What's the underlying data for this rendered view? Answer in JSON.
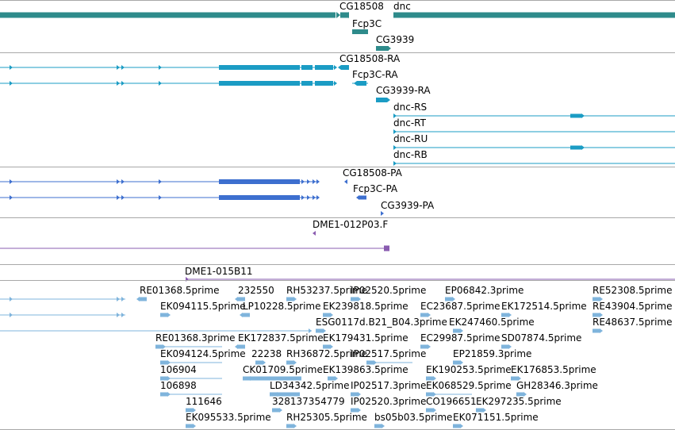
{
  "colors": {
    "gene": "#2e8b8b",
    "transcript": "#1b9cc4",
    "protein": "#3d6fcf",
    "clone": "#8a5cb0",
    "est": "#7fb4dc",
    "separator": "#a8a8a8"
  },
  "tracks": [
    {
      "name": "genes",
      "color": "gene",
      "labels": [
        {
          "id": "gene-cg18508",
          "text": "CG18508"
        },
        {
          "id": "gene-dnc",
          "text": "dnc"
        },
        {
          "id": "gene-fcp3c",
          "text": "Fcp3C"
        },
        {
          "id": "gene-cg3939",
          "text": "CG3939"
        }
      ]
    },
    {
      "name": "transcripts",
      "color": "transcript",
      "labels": [
        {
          "id": "tx-cg18508-ra",
          "text": "CG18508-RA"
        },
        {
          "id": "tx-fcp3c-ra",
          "text": "Fcp3C-RA"
        },
        {
          "id": "tx-cg3939-ra",
          "text": "CG3939-RA"
        },
        {
          "id": "tx-dnc-rs",
          "text": "dnc-RS"
        },
        {
          "id": "tx-dnc-rt",
          "text": "dnc-RT"
        },
        {
          "id": "tx-dnc-ru",
          "text": "dnc-RU"
        },
        {
          "id": "tx-dnc-rb",
          "text": "dnc-RB"
        }
      ]
    },
    {
      "name": "proteins",
      "color": "protein",
      "labels": [
        {
          "id": "pp-cg18508-pa",
          "text": "CG18508-PA"
        },
        {
          "id": "pp-fcp3c-pa",
          "text": "Fcp3C-PA"
        },
        {
          "id": "pp-cg3939-pa",
          "text": "CG3939-PA"
        }
      ]
    },
    {
      "name": "clones",
      "color": "clone",
      "labels": [
        {
          "id": "clone-dme1-012p03",
          "text": "DME1-012P03.F"
        },
        {
          "id": "clone-dme1-015b11",
          "text": "DME1-015B11"
        }
      ]
    },
    {
      "name": "ests",
      "color": "est",
      "labels": [
        {
          "id": "est-re01368-5",
          "text": "RE01368.5prime"
        },
        {
          "id": "est-232550",
          "text": "232550"
        },
        {
          "id": "est-rh53237-5",
          "text": "RH53237.5prime"
        },
        {
          "id": "est-ip02520-5",
          "text": "IP02520.5prime"
        },
        {
          "id": "est-ep06842-3",
          "text": "EP06842.3prime"
        },
        {
          "id": "est-re52308-5",
          "text": "RE52308.5prime"
        },
        {
          "id": "est-ek094115-5",
          "text": "EK094115.5prime"
        },
        {
          "id": "est-lp10228-5",
          "text": "LP10228.5prime"
        },
        {
          "id": "est-ek239818-5",
          "text": "EK239818.5prime"
        },
        {
          "id": "est-ec23687-5",
          "text": "EC23687.5prime"
        },
        {
          "id": "est-ek172514-5",
          "text": "EK172514.5prime"
        },
        {
          "id": "est-re43904-5",
          "text": "RE43904.5prime"
        },
        {
          "id": "est-esg0117d",
          "text": "ESG0117d.B21_B04.3prime"
        },
        {
          "id": "est-ek247460-5",
          "text": "EK247460.5prime"
        },
        {
          "id": "est-re48637-5",
          "text": "RE48637.5prime"
        },
        {
          "id": "est-re01368-3",
          "text": "RE01368.3prime"
        },
        {
          "id": "est-ek172837-5",
          "text": "EK172837.5prime"
        },
        {
          "id": "est-ek179431-5",
          "text": "EK179431.5prime"
        },
        {
          "id": "est-ec29987-5",
          "text": "EC29987.5prime"
        },
        {
          "id": "est-sd07874-5",
          "text": "SD07874.5prime"
        },
        {
          "id": "est-ek094124-5",
          "text": "EK094124.5prime"
        },
        {
          "id": "est-22238",
          "text": "22238"
        },
        {
          "id": "est-rh36872-5",
          "text": "RH36872.5prime"
        },
        {
          "id": "est-ip02517-5",
          "text": "IP02517.5prime"
        },
        {
          "id": "est-ep21859-3",
          "text": "EP21859.3prime"
        },
        {
          "id": "est-106904",
          "text": "106904"
        },
        {
          "id": "est-ck01709-5",
          "text": "CK01709.5prime"
        },
        {
          "id": "est-ek139863-5",
          "text": "EK139863.5prime"
        },
        {
          "id": "est-ek190253-5",
          "text": "EK190253.5prime"
        },
        {
          "id": "est-ek176853-5",
          "text": "EK176853.5prime"
        },
        {
          "id": "est-106898",
          "text": "106898"
        },
        {
          "id": "est-ld34342-5",
          "text": "LD34342.5prime"
        },
        {
          "id": "est-ip02517-3",
          "text": "IP02517.3prime"
        },
        {
          "id": "est-ek068529-5",
          "text": "EK068529.5prime"
        },
        {
          "id": "est-gh28346-3",
          "text": "GH28346.3prime"
        },
        {
          "id": "est-111646",
          "text": "111646"
        },
        {
          "id": "est-328137354779",
          "text": "328137354779"
        },
        {
          "id": "est-ip02520-3",
          "text": "IP02520.3prime"
        },
        {
          "id": "est-co196651",
          "text": "CO196651"
        },
        {
          "id": "est-ek297235-5",
          "text": "EK297235.5prime"
        },
        {
          "id": "est-ek095533-5",
          "text": "EK095533.5prime"
        },
        {
          "id": "est-rh25305-5",
          "text": "RH25305.5prime"
        },
        {
          "id": "est-bs05b03-5",
          "text": "bs05b03.5prime"
        },
        {
          "id": "est-ek071151-5",
          "text": "EK071151.5prime"
        }
      ]
    }
  ]
}
